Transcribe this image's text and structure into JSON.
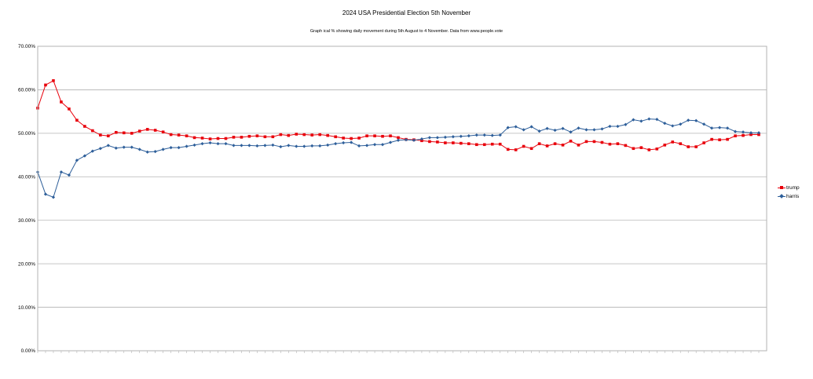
{
  "chart_data": {
    "type": "line",
    "title": "2024 USA Presidential Election 5th November",
    "subtitle": "Graph ical % showing daily movement during 5th August to 4 November. Data from www.people.vote",
    "ylim": [
      0,
      0.7
    ],
    "yticks": [
      "0.00%",
      "10.00%",
      "20.00%",
      "30.00%",
      "40.00%",
      "50.00%",
      "60.00%",
      "70.00%"
    ],
    "grid": true,
    "legend_position": "right",
    "series": [
      {
        "name": "trump",
        "color": "#e8000b",
        "marker": "square",
        "values": [
          0.558,
          0.611,
          0.621,
          0.572,
          0.556,
          0.53,
          0.516,
          0.506,
          0.496,
          0.494,
          0.502,
          0.501,
          0.5,
          0.505,
          0.509,
          0.507,
          0.503,
          0.497,
          0.496,
          0.494,
          0.49,
          0.489,
          0.487,
          0.488,
          0.488,
          0.491,
          0.491,
          0.493,
          0.494,
          0.492,
          0.492,
          0.497,
          0.495,
          0.498,
          0.497,
          0.496,
          0.497,
          0.495,
          0.492,
          0.489,
          0.488,
          0.489,
          0.494,
          0.494,
          0.493,
          0.494,
          0.49,
          0.486,
          0.485,
          0.483,
          0.481,
          0.48,
          0.478,
          0.478,
          0.477,
          0.476,
          0.474,
          0.474,
          0.475,
          0.475,
          0.463,
          0.462,
          0.47,
          0.465,
          0.476,
          0.471,
          0.476,
          0.473,
          0.482,
          0.473,
          0.481,
          0.481,
          0.479,
          0.475,
          0.476,
          0.472,
          0.465,
          0.467,
          0.462,
          0.464,
          0.473,
          0.48,
          0.476,
          0.469,
          0.469,
          0.478,
          0.486,
          0.485,
          0.486,
          0.494,
          0.495,
          0.497,
          0.497
        ]
      },
      {
        "name": "harris",
        "color": "#2e5f9a",
        "marker": "diamond",
        "values": [
          0.411,
          0.36,
          0.353,
          0.411,
          0.404,
          0.438,
          0.448,
          0.459,
          0.465,
          0.472,
          0.466,
          0.468,
          0.468,
          0.463,
          0.457,
          0.458,
          0.463,
          0.467,
          0.467,
          0.47,
          0.473,
          0.476,
          0.478,
          0.476,
          0.476,
          0.472,
          0.472,
          0.472,
          0.471,
          0.472,
          0.473,
          0.469,
          0.472,
          0.47,
          0.47,
          0.471,
          0.471,
          0.473,
          0.476,
          0.478,
          0.479,
          0.471,
          0.472,
          0.474,
          0.474,
          0.479,
          0.484,
          0.485,
          0.484,
          0.487,
          0.49,
          0.49,
          0.491,
          0.492,
          0.493,
          0.494,
          0.496,
          0.496,
          0.495,
          0.496,
          0.513,
          0.515,
          0.508,
          0.515,
          0.505,
          0.511,
          0.507,
          0.511,
          0.503,
          0.512,
          0.508,
          0.508,
          0.51,
          0.516,
          0.516,
          0.52,
          0.531,
          0.528,
          0.533,
          0.532,
          0.523,
          0.517,
          0.521,
          0.53,
          0.529,
          0.521,
          0.512,
          0.513,
          0.512,
          0.504,
          0.503,
          0.501,
          0.501
        ]
      }
    ]
  }
}
